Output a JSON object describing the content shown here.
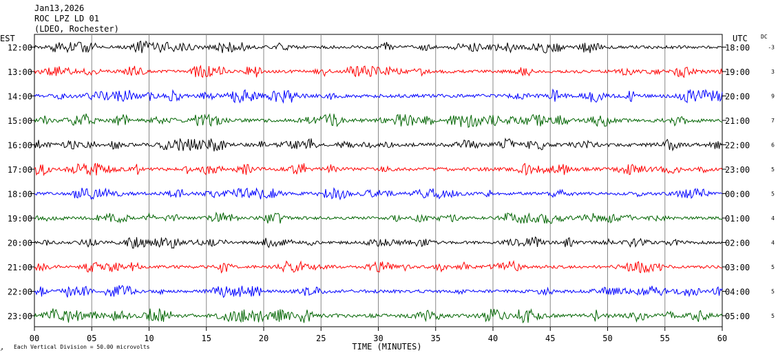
{
  "header": {
    "date": "Jan13,2026",
    "station": "ROC LPZ LD 01",
    "network": "(LDEO, Rochester)"
  },
  "left_axis_title": "EST",
  "right_axis_title": "UTC",
  "dc_title": "DC",
  "footer": {
    "scale_note": "Each Vertical Division =   50.00 microvolts",
    "corner_mark": "↗"
  },
  "chart_data": {
    "type": "line",
    "xlabel": "TIME (MINUTES)",
    "xlim": [
      0,
      60
    ],
    "xticks": [
      "00",
      "05",
      "10",
      "15",
      "20",
      "25",
      "30",
      "35",
      "40",
      "45",
      "50",
      "55",
      "60"
    ],
    "rows": [
      {
        "est": "12:00",
        "utc": "18:00",
        "dc": "-3",
        "color": "#000000",
        "amp": 4.2,
        "seed": 11
      },
      {
        "est": "13:00",
        "utc": "19:00",
        "dc": "3",
        "color": "#ff0000",
        "amp": 4.0,
        "seed": 23
      },
      {
        "est": "14:00",
        "utc": "20:00",
        "dc": "9",
        "color": "#0000ff",
        "amp": 4.6,
        "seed": 37
      },
      {
        "est": "15:00",
        "utc": "21:00",
        "dc": "7",
        "color": "#006400",
        "amp": 4.8,
        "seed": 41
      },
      {
        "est": "16:00",
        "utc": "22:00",
        "dc": "6",
        "color": "#000000",
        "amp": 4.6,
        "seed": 53
      },
      {
        "est": "17:00",
        "utc": "23:00",
        "dc": "5",
        "color": "#ff0000",
        "amp": 4.4,
        "seed": 67
      },
      {
        "est": "18:00",
        "utc": "00:00",
        "dc": "5",
        "color": "#0000ff",
        "amp": 4.0,
        "seed": 71
      },
      {
        "est": "19:00",
        "utc": "01:00",
        "dc": "4",
        "color": "#006400",
        "amp": 3.8,
        "seed": 83
      },
      {
        "est": "20:00",
        "utc": "02:00",
        "dc": "4",
        "color": "#000000",
        "amp": 4.0,
        "seed": 97
      },
      {
        "est": "21:00",
        "utc": "03:00",
        "dc": "5",
        "color": "#ff0000",
        "amp": 4.0,
        "seed": 101
      },
      {
        "est": "22:00",
        "utc": "04:00",
        "dc": "5",
        "color": "#0000ff",
        "amp": 4.2,
        "seed": 113
      },
      {
        "est": "23:00",
        "utc": "05:00",
        "dc": "5",
        "color": "#006400",
        "amp": 5.0,
        "seed": 127
      }
    ]
  }
}
